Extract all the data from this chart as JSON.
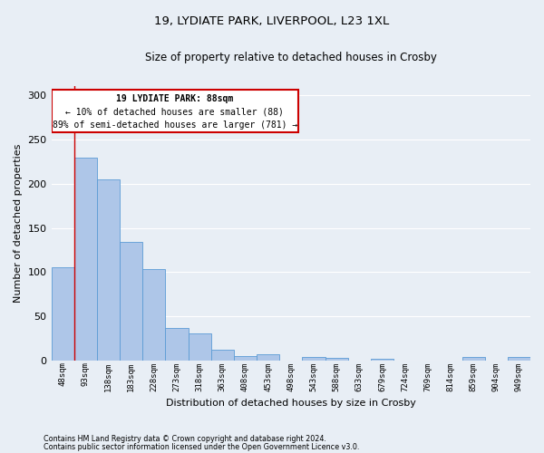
{
  "title1": "19, LYDIATE PARK, LIVERPOOL, L23 1XL",
  "title2": "Size of property relative to detached houses in Crosby",
  "xlabel": "Distribution of detached houses by size in Crosby",
  "ylabel": "Number of detached properties",
  "categories": [
    "48sqm",
    "93sqm",
    "138sqm",
    "183sqm",
    "228sqm",
    "273sqm",
    "318sqm",
    "363sqm",
    "408sqm",
    "453sqm",
    "498sqm",
    "543sqm",
    "588sqm",
    "633sqm",
    "679sqm",
    "724sqm",
    "769sqm",
    "814sqm",
    "859sqm",
    "904sqm",
    "949sqm"
  ],
  "values": [
    106,
    229,
    205,
    134,
    103,
    37,
    31,
    12,
    5,
    7,
    0,
    4,
    3,
    0,
    2,
    0,
    0,
    0,
    4,
    0,
    4
  ],
  "bar_color": "#aec6e8",
  "bar_edge_color": "#5b9bd5",
  "annotation_title": "19 LYDIATE PARK: 88sqm",
  "annotation_line1": "← 10% of detached houses are smaller (88)",
  "annotation_line2": "89% of semi-detached houses are larger (781) →",
  "annotation_box_color": "#ffffff",
  "annotation_box_edge": "#cc0000",
  "red_line_color": "#cc0000",
  "ylim": [
    0,
    310
  ],
  "background_color": "#e8eef5",
  "grid_color": "#ffffff",
  "footer1": "Contains HM Land Registry data © Crown copyright and database right 2024.",
  "footer2": "Contains public sector information licensed under the Open Government Licence v3.0."
}
